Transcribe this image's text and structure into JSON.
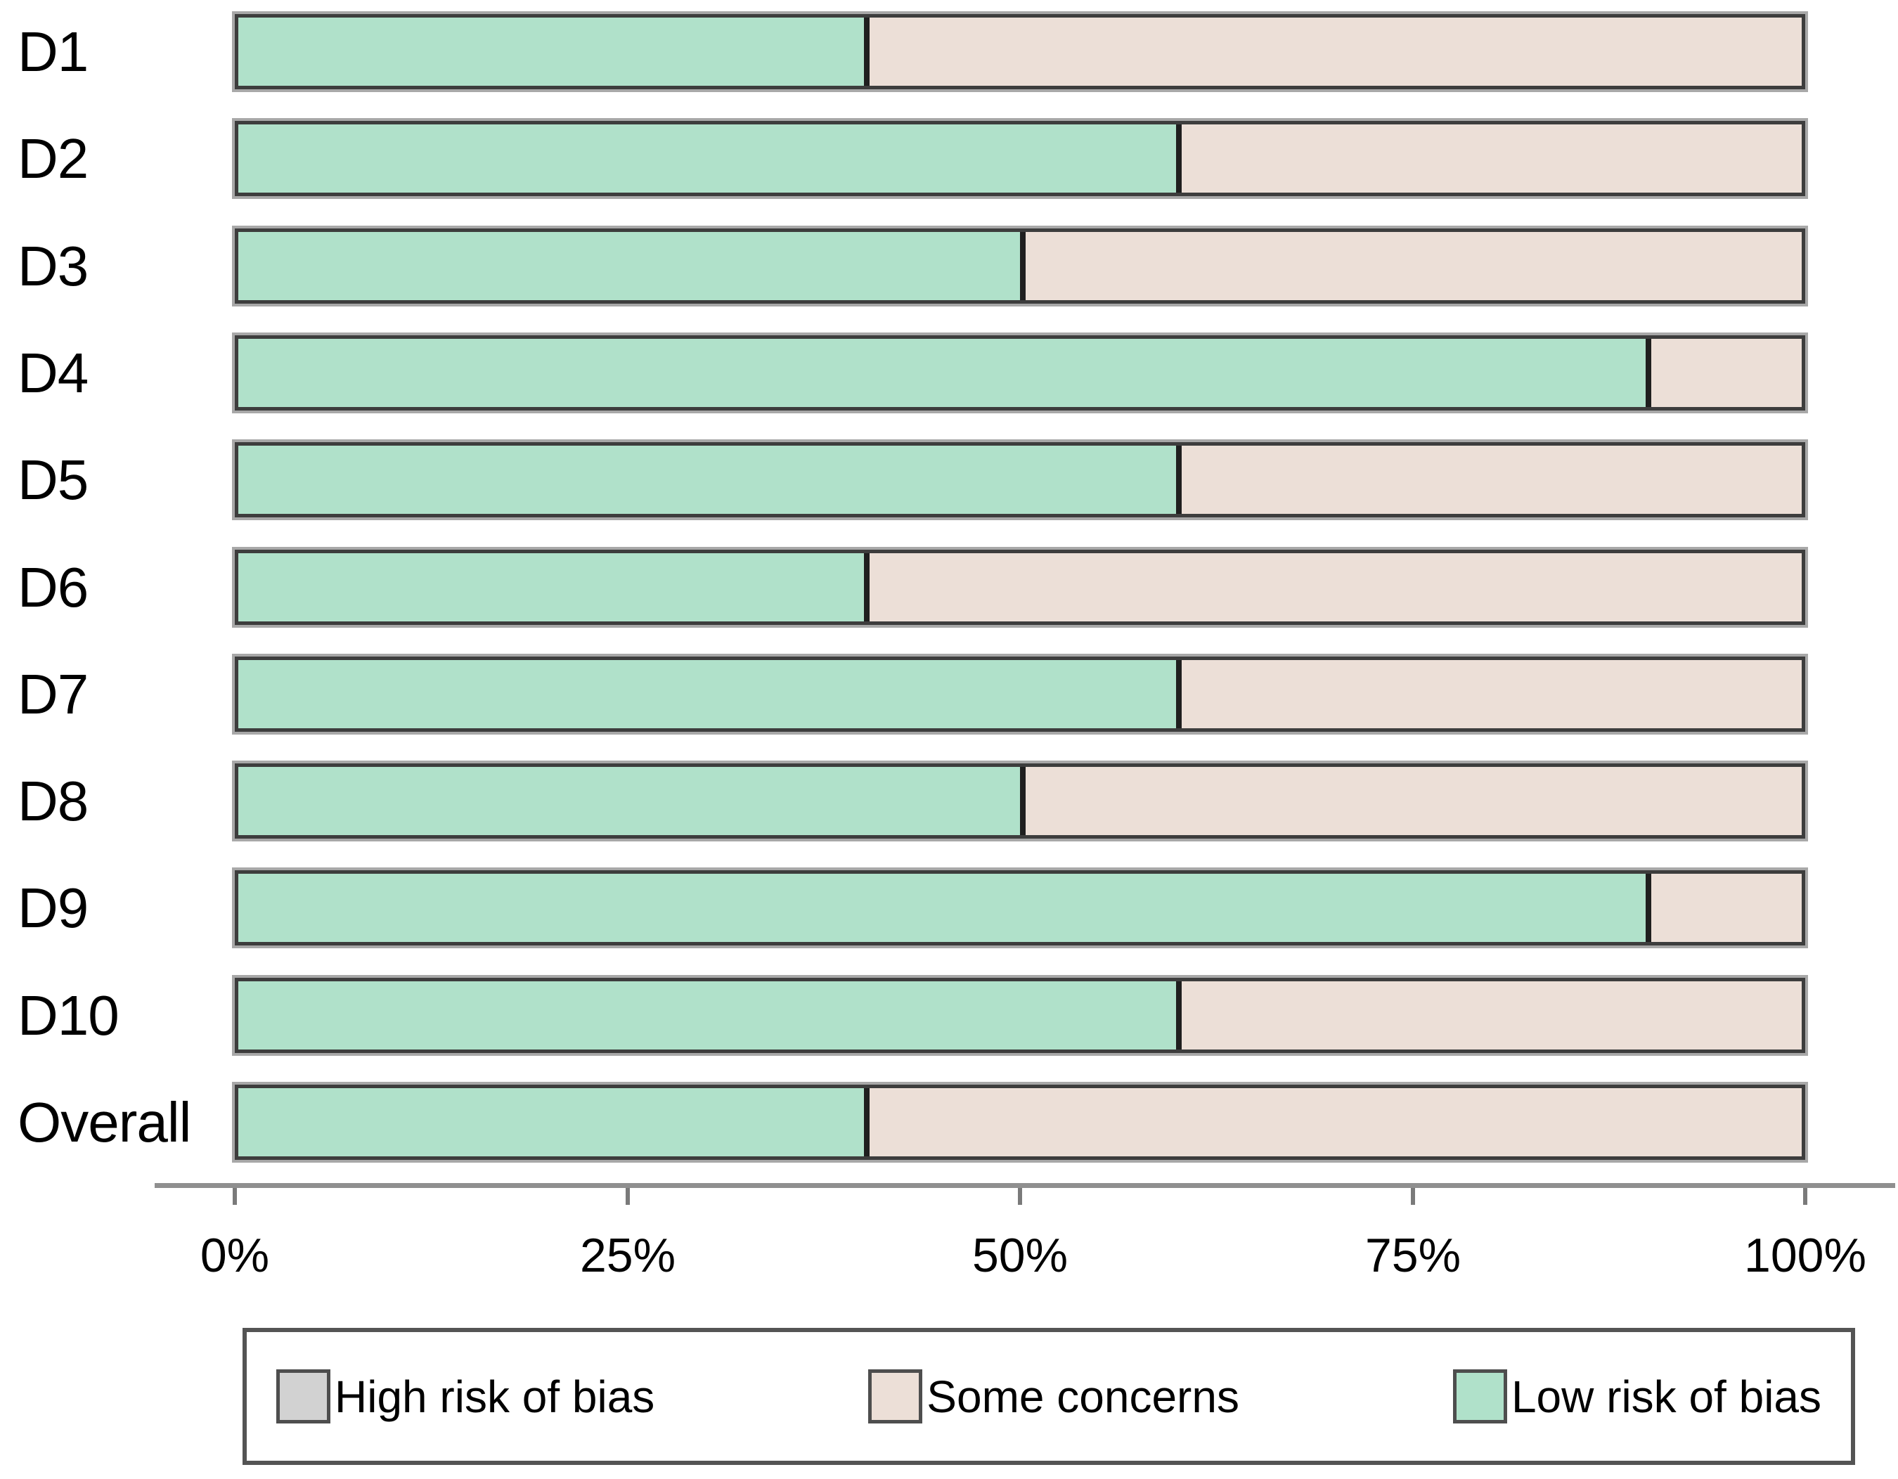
{
  "chart_data": {
    "type": "bar",
    "orientation": "horizontal",
    "stacked": true,
    "unit": "%",
    "categories": [
      "D1",
      "D2",
      "D3",
      "D4",
      "D5",
      "D6",
      "D7",
      "D8",
      "D9",
      "D10",
      "Overall"
    ],
    "series": [
      {
        "name": "Low risk of bias",
        "color": "#b0e1ca",
        "values": [
          40,
          60,
          50,
          90,
          60,
          40,
          60,
          50,
          90,
          60,
          40
        ]
      },
      {
        "name": "Some concerns",
        "color": "#ecdfd7",
        "values": [
          60,
          40,
          50,
          10,
          40,
          60,
          40,
          50,
          10,
          40,
          60
        ]
      },
      {
        "name": "High risk of bias",
        "color": "#d2d2d2",
        "values": [
          0,
          0,
          0,
          0,
          0,
          0,
          0,
          0,
          0,
          0,
          0
        ]
      }
    ],
    "xlim": [
      0,
      100
    ],
    "x_ticks": [
      "0%",
      "25%",
      "50%",
      "75%",
      "100%"
    ],
    "x_tick_values": [
      0,
      25,
      50,
      75,
      100
    ],
    "grid": false,
    "legend_position": "bottom",
    "legend": [
      {
        "label": "High risk of bias",
        "color": "#d2d2d2"
      },
      {
        "label": "Some concerns",
        "color": "#ecdfd7"
      },
      {
        "label": "Low risk of bias",
        "color": "#b0e1ca"
      }
    ],
    "colors": {
      "bar_border": "#3d3d3d",
      "segment_divider": "#1f1f1f",
      "axis": "#8f8f8f",
      "text": "#000000",
      "background": "#ffffff"
    }
  }
}
